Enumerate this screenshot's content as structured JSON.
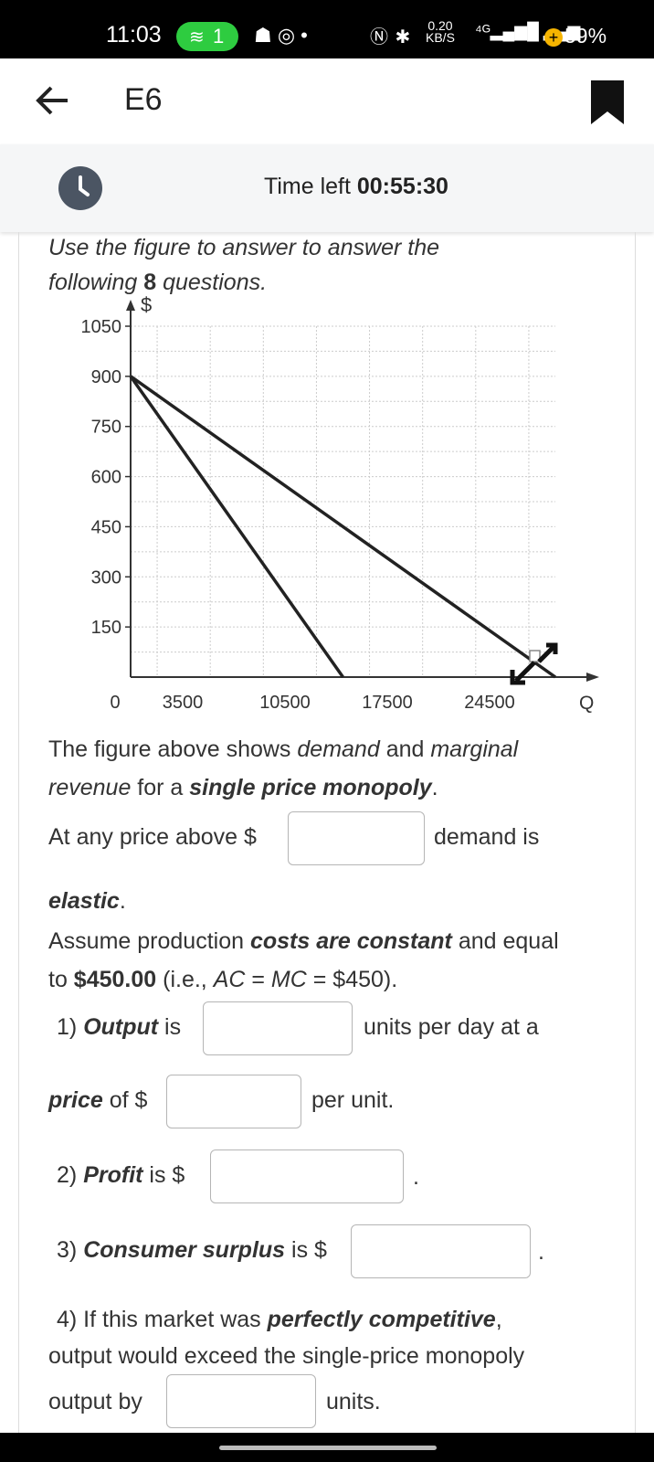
{
  "status": {
    "time": "11:03",
    "hotspot_count": "1",
    "speed_top": "0.20",
    "speed_bottom": "KB/S",
    "battery": "59%"
  },
  "header": {
    "title": "E6"
  },
  "timer": {
    "label": "Time left",
    "value": "00:55:30"
  },
  "intro": {
    "line1": "Use the figure to answer to answer the",
    "line2_pre": "following ",
    "line2_num": "8",
    "line2_post": " questions."
  },
  "chart_data": {
    "type": "line",
    "ylabel": "$",
    "xlabel": "Q",
    "y_ticks": [
      "1050",
      "900",
      "750",
      "600",
      "450",
      "300",
      "150"
    ],
    "x_ticks": [
      "0",
      "3500",
      "10500",
      "17500",
      "24500"
    ],
    "ylim": [
      0,
      1050
    ],
    "xlim": [
      0,
      28000
    ],
    "series": [
      {
        "name": "Demand",
        "x": [
          0,
          28000
        ],
        "y": [
          900,
          0
        ]
      },
      {
        "name": "Marginal revenue",
        "x": [
          0,
          14000
        ],
        "y": [
          900,
          0
        ]
      }
    ]
  },
  "text": {
    "desc_1": "The figure above shows ",
    "desc_2": "demand",
    "desc_3": " and ",
    "desc_4": "marginal",
    "desc_5": "revenue",
    "desc_6": " for a ",
    "desc_7": "single price monopoly",
    "desc_8": ".",
    "elastic_pre": "At any price above $",
    "elastic_post": "demand is",
    "elastic_word": "elastic",
    "assume_1": "Assume production ",
    "assume_2": "costs are constant",
    "assume_3": " and equal",
    "assume_4": "to ",
    "assume_5": "$450.00",
    "assume_6": " (i.e., ",
    "assume_7": "AC",
    "assume_8": " = ",
    "assume_9": "MC",
    "assume_10": " = $450).",
    "q1_num": "1) ",
    "q1_bold": "Output",
    "q1_mid": " is",
    "q1_post": "units per day at a",
    "q1b_bold": "price",
    "q1b_mid": " of $",
    "q1b_post": "per unit.",
    "q2_num": "2) ",
    "q2_bold": "Profit",
    "q2_mid": " is $",
    "q3_num": "3) ",
    "q3_bold": "Consumer surplus",
    "q3_mid": " is $",
    "q4_num": "4) If this market was ",
    "q4_bold": "perfectly competitive",
    "q4_comma": ",",
    "q4_line2": "output would exceed the single-price monopoly",
    "q4_line3": "output by",
    "q4_post": "units."
  }
}
